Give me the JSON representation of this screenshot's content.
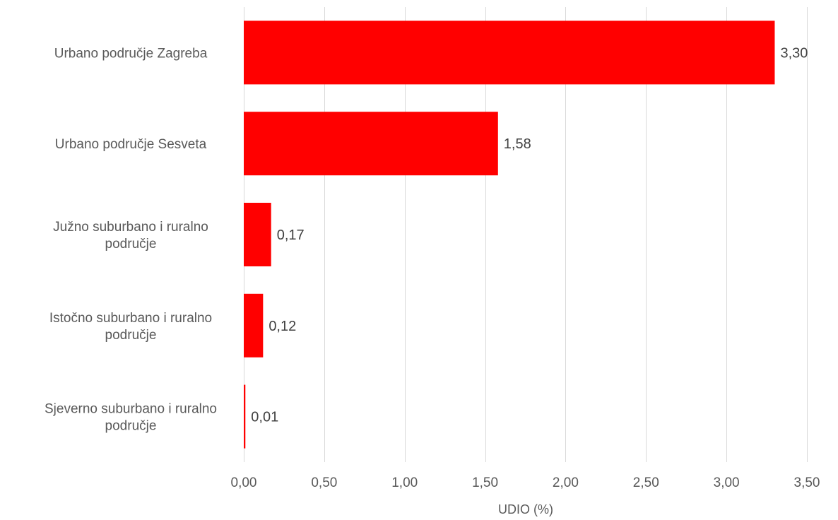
{
  "chart_data": {
    "type": "bar",
    "orientation": "horizontal",
    "categories": [
      [
        "Urbano područje Zagreba"
      ],
      [
        "Urbano područje Sesveta"
      ],
      [
        "Južno suburbano i ruralno",
        "područje"
      ],
      [
        "Istočno suburbano i ruralno",
        "područje"
      ],
      [
        "Sjeverno suburbano i ruralno",
        "područje"
      ]
    ],
    "values": [
      3.3,
      1.58,
      0.17,
      0.12,
      0.01
    ],
    "data_labels": [
      "3,30",
      "1,58",
      "0,17",
      "0,12",
      "0,01"
    ],
    "x_ticks": [
      0,
      0.5,
      1,
      1.5,
      2,
      2.5,
      3,
      3.5
    ],
    "x_tick_labels": [
      "0,00",
      "0,50",
      "1,00",
      "1,50",
      "2,00",
      "2,50",
      "3,00",
      "3,50"
    ],
    "xlabel": "UDIO (%)",
    "xlim": [
      0,
      3.5
    ],
    "grid": true,
    "bar_color": "#ff0000",
    "grid_color": "#d9d9d9"
  }
}
